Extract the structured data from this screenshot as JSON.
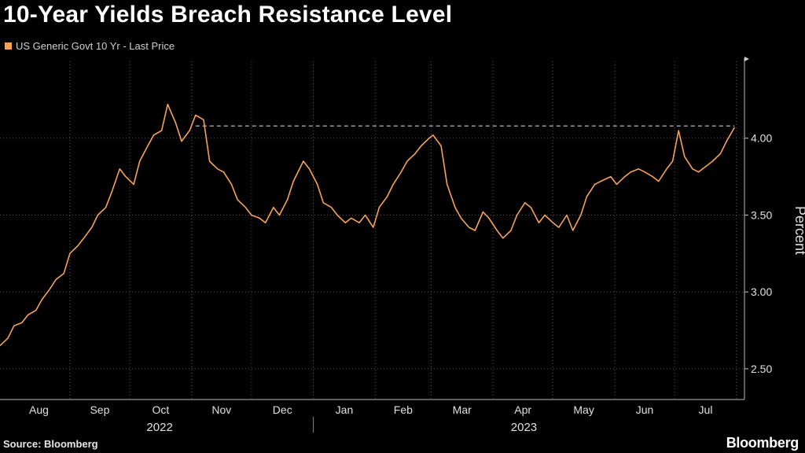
{
  "title": "10-Year Yields Breach Resistance Level",
  "legend": {
    "label": "US Generic Govt 10 Yr - Last Price"
  },
  "source": "Source: Bloomberg",
  "brand": "Bloomberg",
  "colors": {
    "series": "#f5a35c",
    "background": "#000000",
    "grid": "#555555",
    "text": "#e0e0e0",
    "resistance": "#e8e8e8"
  },
  "chart_data": {
    "type": "line",
    "ylabel": "Percent",
    "ylim": [
      2.3,
      4.5
    ],
    "yticks": [
      2.5,
      3.0,
      3.5,
      4.0
    ],
    "ytick_labels": [
      "2.50",
      "3.00",
      "3.50",
      "4.00"
    ],
    "grid": true,
    "legend_position": "top-left",
    "months": [
      "Aug",
      "Sep",
      "Oct",
      "Nov",
      "Dec",
      "Jan",
      "Feb",
      "Mar",
      "Apr",
      "May",
      "Jun",
      "Jul"
    ],
    "years": [
      {
        "label": "2022",
        "span": [
          "2022-08-01",
          "2022-12-31"
        ]
      },
      {
        "label": "2023",
        "span": [
          "2023-01-01",
          "2023-07-31"
        ]
      }
    ],
    "xlim": [
      "2022-07-28",
      "2023-08-05"
    ],
    "resistance": {
      "value": 4.08,
      "from": "2022-11-03",
      "to": "2023-07-31"
    },
    "series": [
      {
        "name": "US Generic Govt 10 Yr - Last Price",
        "x": [
          "2022-07-28",
          "2022-08-01",
          "2022-08-04",
          "2022-08-08",
          "2022-08-11",
          "2022-08-15",
          "2022-08-18",
          "2022-08-22",
          "2022-08-25",
          "2022-08-29",
          "2022-09-01",
          "2022-09-05",
          "2022-09-08",
          "2022-09-12",
          "2022-09-15",
          "2022-09-19",
          "2022-09-22",
          "2022-09-26",
          "2022-09-29",
          "2022-10-03",
          "2022-10-06",
          "2022-10-10",
          "2022-10-13",
          "2022-10-17",
          "2022-10-20",
          "2022-10-24",
          "2022-10-27",
          "2022-10-31",
          "2022-11-03",
          "2022-11-07",
          "2022-11-10",
          "2022-11-14",
          "2022-11-17",
          "2022-11-21",
          "2022-11-24",
          "2022-11-28",
          "2022-12-01",
          "2022-12-05",
          "2022-12-08",
          "2022-12-12",
          "2022-12-15",
          "2022-12-19",
          "2022-12-22",
          "2022-12-27",
          "2022-12-30",
          "2023-01-03",
          "2023-01-06",
          "2023-01-10",
          "2023-01-13",
          "2023-01-17",
          "2023-01-20",
          "2023-01-24",
          "2023-01-27",
          "2023-01-31",
          "2023-02-03",
          "2023-02-07",
          "2023-02-10",
          "2023-02-14",
          "2023-02-17",
          "2023-02-21",
          "2023-02-24",
          "2023-02-28",
          "2023-03-02",
          "2023-03-06",
          "2023-03-09",
          "2023-03-13",
          "2023-03-16",
          "2023-03-20",
          "2023-03-23",
          "2023-03-27",
          "2023-03-30",
          "2023-04-03",
          "2023-04-06",
          "2023-04-10",
          "2023-04-13",
          "2023-04-17",
          "2023-04-20",
          "2023-04-24",
          "2023-04-27",
          "2023-05-01",
          "2023-05-04",
          "2023-05-08",
          "2023-05-11",
          "2023-05-15",
          "2023-05-18",
          "2023-05-22",
          "2023-05-25",
          "2023-05-30",
          "2023-06-02",
          "2023-06-06",
          "2023-06-09",
          "2023-06-13",
          "2023-06-16",
          "2023-06-20",
          "2023-06-23",
          "2023-06-27",
          "2023-06-30",
          "2023-07-03",
          "2023-07-06",
          "2023-07-10",
          "2023-07-13",
          "2023-07-17",
          "2023-07-20",
          "2023-07-24",
          "2023-07-27",
          "2023-07-31"
        ],
        "values": [
          2.65,
          2.7,
          2.78,
          2.8,
          2.85,
          2.88,
          2.95,
          3.02,
          3.08,
          3.12,
          3.25,
          3.3,
          3.35,
          3.42,
          3.5,
          3.55,
          3.65,
          3.8,
          3.75,
          3.7,
          3.85,
          3.95,
          4.02,
          4.05,
          4.22,
          4.1,
          3.98,
          4.05,
          4.15,
          4.12,
          3.85,
          3.8,
          3.78,
          3.7,
          3.6,
          3.55,
          3.5,
          3.48,
          3.45,
          3.55,
          3.5,
          3.6,
          3.72,
          3.85,
          3.8,
          3.7,
          3.58,
          3.55,
          3.5,
          3.45,
          3.48,
          3.45,
          3.5,
          3.42,
          3.55,
          3.62,
          3.7,
          3.78,
          3.85,
          3.9,
          3.95,
          4.0,
          4.02,
          3.95,
          3.7,
          3.55,
          3.48,
          3.42,
          3.4,
          3.52,
          3.48,
          3.4,
          3.35,
          3.4,
          3.5,
          3.58,
          3.55,
          3.45,
          3.5,
          3.45,
          3.42,
          3.5,
          3.4,
          3.5,
          3.62,
          3.7,
          3.72,
          3.75,
          3.7,
          3.75,
          3.78,
          3.8,
          3.78,
          3.75,
          3.72,
          3.8,
          3.85,
          4.05,
          3.88,
          3.8,
          3.78,
          3.82,
          3.85,
          3.9,
          3.98,
          4.07
        ]
      }
    ]
  }
}
